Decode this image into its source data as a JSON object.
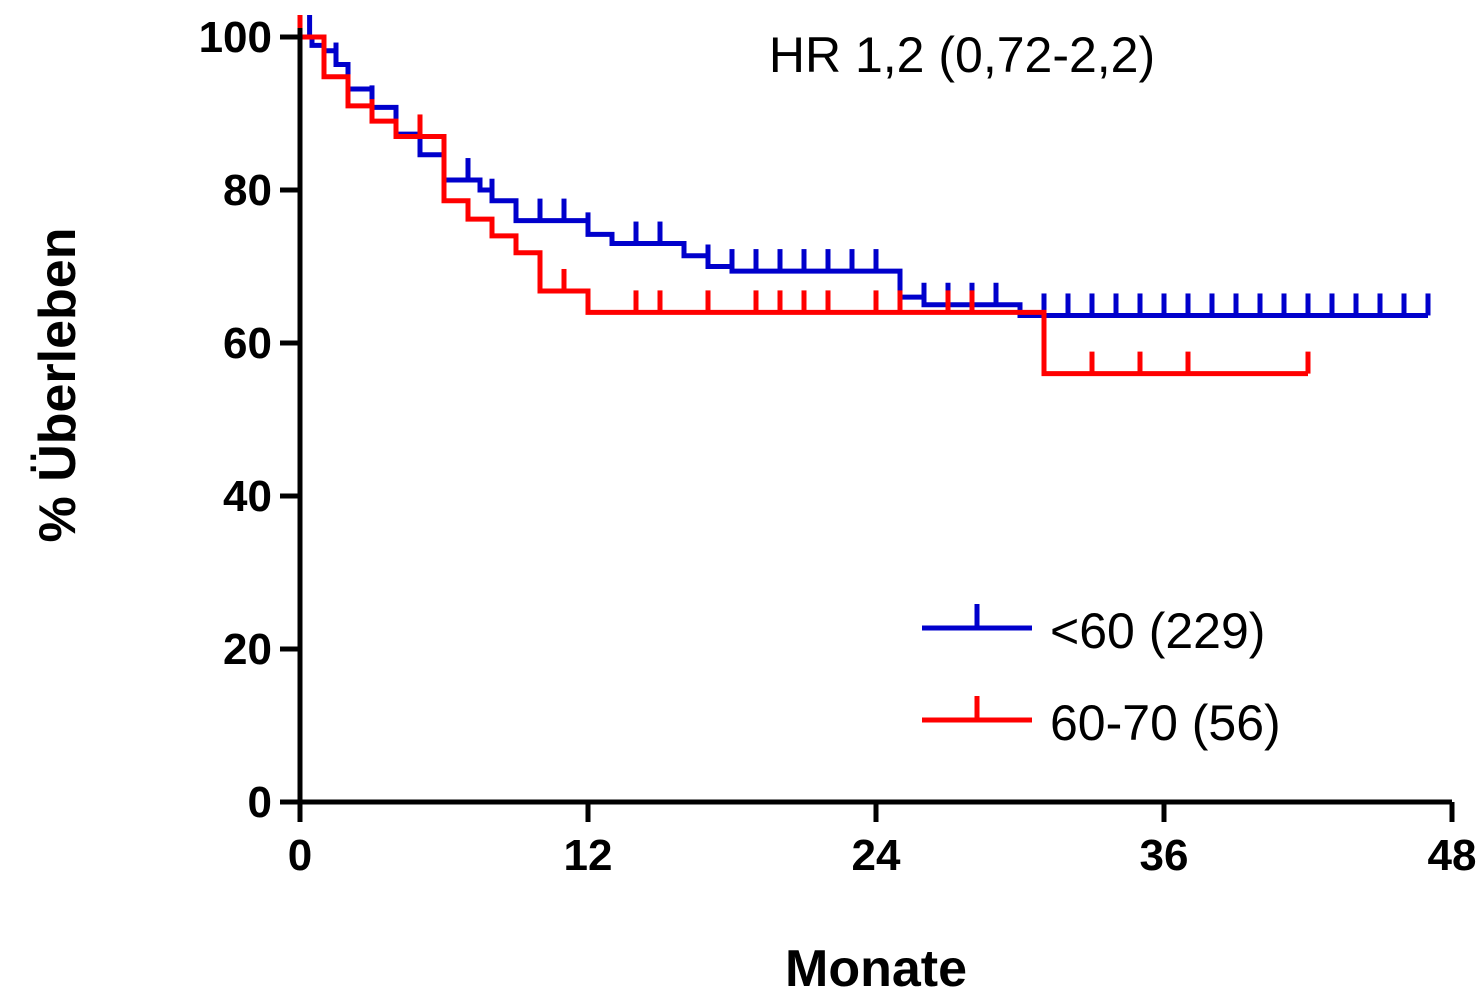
{
  "chart_data": {
    "type": "line",
    "title": "",
    "annotation": "HR 1,2 (0,72-2,2)",
    "xlabel": "Monate",
    "ylabel": "% Überleben",
    "xlim": [
      0,
      48
    ],
    "ylim": [
      0,
      100
    ],
    "x_ticks": [
      "0",
      "12",
      "24",
      "36",
      "48"
    ],
    "y_ticks": [
      "0",
      "20",
      "40",
      "60",
      "80",
      "100"
    ],
    "grid": false,
    "legend_position": "bottom-right",
    "series": [
      {
        "name": "<60 (229)",
        "color": "#0000cc",
        "steps": [
          [
            0,
            100
          ],
          [
            0.5,
            98.9
          ],
          [
            1,
            98.2
          ],
          [
            1.5,
            96.4
          ],
          [
            2,
            93.2
          ],
          [
            3,
            90.8
          ],
          [
            4,
            87.3
          ],
          [
            5,
            84.6
          ],
          [
            6,
            81.3
          ],
          [
            7.5,
            80.0
          ],
          [
            8,
            78.6
          ],
          [
            9,
            76.0
          ],
          [
            12,
            74.2
          ],
          [
            13,
            73.0
          ],
          [
            16,
            71.4
          ],
          [
            17,
            70.0
          ],
          [
            18,
            69.4
          ],
          [
            25,
            66.0
          ],
          [
            26,
            65.0
          ],
          [
            30,
            63.6
          ],
          [
            47,
            63.6
          ]
        ],
        "censored": [
          0.4,
          1.5,
          3,
          4,
          7,
          8,
          10,
          11,
          12,
          14,
          15,
          17,
          18,
          19,
          20,
          21,
          22,
          23,
          24,
          26,
          27,
          28,
          29,
          31,
          32,
          33,
          34,
          35,
          36,
          37,
          38,
          39,
          40,
          41,
          42,
          43,
          44,
          45,
          46,
          47
        ]
      },
      {
        "name": "60-70 (56)",
        "color": "#ff0000",
        "steps": [
          [
            0,
            100
          ],
          [
            1,
            94.8
          ],
          [
            2,
            91.0
          ],
          [
            3,
            89.0
          ],
          [
            4,
            87.0
          ],
          [
            6,
            78.6
          ],
          [
            7,
            76.2
          ],
          [
            8,
            74.0
          ],
          [
            9,
            71.8
          ],
          [
            10,
            66.8
          ],
          [
            12,
            64.0
          ],
          [
            31,
            56.0
          ],
          [
            42,
            56.0
          ]
        ],
        "censored": [
          0,
          3,
          5,
          11,
          14,
          15,
          17,
          19,
          20,
          21,
          22,
          24,
          25,
          27,
          28,
          33,
          35,
          37,
          42
        ]
      }
    ]
  }
}
